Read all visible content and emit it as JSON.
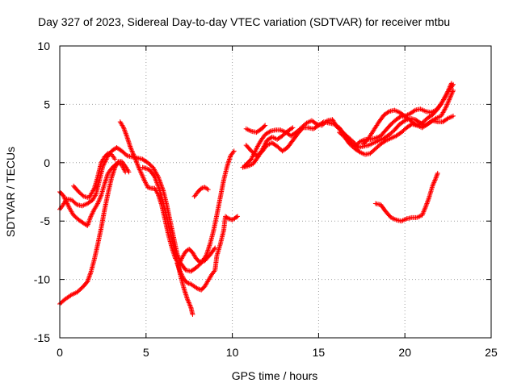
{
  "chart_data": {
    "type": "scatter",
    "title": "Day 327 of 2023, Sidereal Day-to-day VTEC variation (SDTVAR) for receiver mtbu",
    "xlabel": "GPS time / hours",
    "ylabel": "SDTVAR / TECUs",
    "xlim": [
      0,
      25
    ],
    "ylim": [
      -15,
      10
    ],
    "xticks": [
      "0",
      "5",
      "10",
      "15",
      "20",
      "25"
    ],
    "yticks": [
      "-15",
      "-10",
      "-5",
      "0",
      "5",
      "10"
    ],
    "grid": true,
    "marker": "+",
    "colors": {
      "series": "#ff0000",
      "grid": "#a0a0a0",
      "axis": "#000000"
    },
    "series": [
      {
        "points": [
          [
            0.0,
            -12.1
          ],
          [
            0.3,
            -11.7
          ],
          [
            0.7,
            -11.3
          ],
          [
            1.0,
            -11.1
          ],
          [
            1.3,
            -10.7
          ],
          [
            1.6,
            -10.2
          ],
          [
            1.8,
            -9.4
          ],
          [
            2.0,
            -8.3
          ],
          [
            2.2,
            -7.0
          ],
          [
            2.4,
            -5.6
          ],
          [
            2.6,
            -4.0
          ],
          [
            2.8,
            -2.6
          ],
          [
            3.0,
            -1.3
          ],
          [
            3.2,
            -0.4
          ],
          [
            3.4,
            0.1
          ],
          [
            3.6,
            0.1
          ],
          [
            3.8,
            -0.3
          ],
          [
            4.0,
            -0.8
          ]
        ]
      },
      {
        "points": [
          [
            0.0,
            -2.5
          ],
          [
            0.2,
            -2.8
          ],
          [
            0.4,
            -3.4
          ],
          [
            0.6,
            -4.0
          ],
          [
            0.8,
            -4.5
          ],
          [
            1.1,
            -4.9
          ],
          [
            1.4,
            -5.2
          ],
          [
            1.6,
            -5.4
          ],
          [
            1.8,
            -4.6
          ],
          [
            2.0,
            -4.0
          ],
          [
            2.2,
            -3.5
          ],
          [
            2.4,
            -2.8
          ],
          [
            2.6,
            -1.8
          ],
          [
            2.8,
            -0.9
          ],
          [
            3.0,
            -0.5
          ],
          [
            3.2,
            -0.2
          ],
          [
            3.4,
            0.0
          ],
          [
            3.6,
            -0.2
          ],
          [
            3.8,
            -0.8
          ]
        ]
      },
      {
        "points": [
          [
            0.0,
            -4.0
          ],
          [
            0.2,
            -3.6
          ],
          [
            0.4,
            -3.1
          ],
          [
            0.7,
            -3.2
          ],
          [
            1.0,
            -3.6
          ],
          [
            1.3,
            -3.7
          ],
          [
            1.6,
            -3.5
          ],
          [
            1.9,
            -3.2
          ],
          [
            2.1,
            -2.7
          ],
          [
            2.3,
            -1.5
          ],
          [
            2.5,
            -0.3
          ],
          [
            2.8,
            0.6
          ],
          [
            3.0,
            1.0
          ],
          [
            3.3,
            1.3
          ],
          [
            3.6,
            1.0
          ],
          [
            3.9,
            0.6
          ],
          [
            4.2,
            0.5
          ],
          [
            4.5,
            0.4
          ],
          [
            4.8,
            0.3
          ],
          [
            5.1,
            0.0
          ],
          [
            5.4,
            -0.4
          ],
          [
            5.7,
            -1.2
          ],
          [
            6.0,
            -2.4
          ],
          [
            6.2,
            -3.6
          ],
          [
            6.4,
            -5.0
          ],
          [
            6.6,
            -6.4
          ],
          [
            6.8,
            -7.8
          ],
          [
            7.0,
            -8.6
          ],
          [
            7.3,
            -9.2
          ],
          [
            7.6,
            -9.3
          ],
          [
            7.9,
            -9.0
          ],
          [
            8.2,
            -8.6
          ],
          [
            8.5,
            -7.9
          ],
          [
            8.7,
            -7.0
          ],
          [
            8.9,
            -5.9
          ],
          [
            9.1,
            -4.5
          ],
          [
            9.3,
            -3.0
          ],
          [
            9.5,
            -1.5
          ],
          [
            9.7,
            -0.3
          ],
          [
            9.9,
            0.6
          ],
          [
            10.1,
            1.0
          ]
        ]
      },
      {
        "points": [
          [
            0.8,
            -2.0
          ],
          [
            1.1,
            -2.5
          ],
          [
            1.4,
            -2.9
          ],
          [
            1.7,
            -3.0
          ],
          [
            2.0,
            -2.2
          ],
          [
            2.2,
            -1.2
          ],
          [
            2.4,
            0.0
          ],
          [
            2.6,
            0.5
          ],
          [
            2.8,
            0.8
          ],
          [
            3.0,
            0.7
          ],
          [
            3.2,
            0.3
          ]
        ]
      },
      {
        "points": [
          [
            3.5,
            3.5
          ],
          [
            3.7,
            3.0
          ],
          [
            3.9,
            2.2
          ],
          [
            4.1,
            1.3
          ],
          [
            4.3,
            0.6
          ],
          [
            4.6,
            -0.5
          ],
          [
            4.9,
            -1.5
          ],
          [
            5.1,
            -2.1
          ],
          [
            5.3,
            -2.2
          ],
          [
            5.5,
            -2.2
          ],
          [
            5.7,
            -2.7
          ],
          [
            5.9,
            -3.6
          ],
          [
            6.1,
            -4.9
          ],
          [
            6.3,
            -6.2
          ],
          [
            6.5,
            -7.3
          ],
          [
            6.7,
            -8.2
          ],
          [
            6.9,
            -8.7
          ],
          [
            7.1,
            -8.1
          ],
          [
            7.3,
            -7.6
          ],
          [
            7.5,
            -7.4
          ],
          [
            7.7,
            -7.7
          ],
          [
            7.9,
            -8.2
          ],
          [
            8.1,
            -8.5
          ],
          [
            8.4,
            -8.4
          ],
          [
            8.7,
            -7.9
          ],
          [
            9.0,
            -7.3
          ]
        ]
      },
      {
        "points": [
          [
            4.8,
            -0.4
          ],
          [
            5.2,
            -0.6
          ],
          [
            5.5,
            -1.2
          ],
          [
            5.8,
            -2.4
          ],
          [
            6.0,
            -3.5
          ],
          [
            6.2,
            -4.7
          ],
          [
            6.4,
            -6.0
          ],
          [
            6.6,
            -7.2
          ],
          [
            6.8,
            -8.4
          ],
          [
            7.0,
            -9.7
          ],
          [
            7.2,
            -10.8
          ],
          [
            7.4,
            -11.7
          ],
          [
            7.6,
            -12.4
          ],
          [
            7.7,
            -13.0
          ]
        ]
      },
      {
        "points": [
          [
            6.8,
            -8.6
          ],
          [
            7.0,
            -9.4
          ],
          [
            7.2,
            -10.0
          ],
          [
            7.4,
            -10.3
          ],
          [
            7.6,
            -10.4
          ],
          [
            7.8,
            -10.6
          ],
          [
            8.0,
            -10.8
          ],
          [
            8.2,
            -10.9
          ],
          [
            8.4,
            -10.6
          ],
          [
            8.6,
            -10.1
          ],
          [
            8.8,
            -9.6
          ],
          [
            9.0,
            -9.2
          ],
          [
            9.1,
            -8.0
          ],
          [
            9.3,
            -7.0
          ],
          [
            9.5,
            -5.8
          ],
          [
            9.6,
            -4.6
          ],
          [
            9.8,
            -4.8
          ],
          [
            10.0,
            -4.9
          ],
          [
            10.2,
            -4.7
          ],
          [
            10.3,
            -4.6
          ]
        ]
      },
      {
        "points": [
          [
            7.8,
            -2.9
          ],
          [
            8.0,
            -2.5
          ],
          [
            8.2,
            -2.2
          ],
          [
            8.4,
            -2.1
          ],
          [
            8.6,
            -2.3
          ]
        ]
      },
      {
        "points": [
          [
            10.7,
            -0.3
          ],
          [
            10.9,
            0.0
          ],
          [
            11.1,
            0.3
          ],
          [
            11.3,
            0.9
          ],
          [
            11.5,
            1.5
          ],
          [
            11.7,
            2.0
          ],
          [
            11.9,
            2.4
          ],
          [
            12.2,
            2.7
          ],
          [
            12.5,
            2.8
          ],
          [
            12.8,
            2.8
          ],
          [
            13.1,
            2.6
          ],
          [
            13.4,
            2.3
          ],
          [
            13.7,
            2.6
          ],
          [
            14.0,
            3.0
          ],
          [
            14.3,
            3.4
          ],
          [
            14.6,
            3.6
          ],
          [
            14.9,
            3.3
          ],
          [
            15.2,
            3.2
          ],
          [
            15.5,
            3.6
          ],
          [
            15.8,
            3.7
          ],
          [
            16.1,
            3.0
          ],
          [
            16.4,
            2.6
          ],
          [
            16.7,
            2.2
          ],
          [
            17.0,
            1.8
          ],
          [
            17.3,
            1.3
          ],
          [
            17.6,
            1.4
          ],
          [
            17.9,
            1.5
          ],
          [
            18.2,
            1.7
          ],
          [
            18.5,
            1.9
          ],
          [
            18.8,
            2.1
          ],
          [
            19.1,
            2.4
          ],
          [
            19.4,
            2.8
          ],
          [
            19.7,
            3.3
          ],
          [
            20.0,
            3.6
          ],
          [
            20.3,
            3.8
          ],
          [
            20.6,
            3.7
          ],
          [
            20.9,
            3.4
          ],
          [
            21.2,
            3.2
          ],
          [
            21.5,
            3.5
          ],
          [
            21.8,
            3.8
          ],
          [
            22.1,
            4.0
          ],
          [
            22.4,
            4.8
          ],
          [
            22.6,
            5.5
          ],
          [
            22.8,
            6.2
          ]
        ]
      },
      {
        "points": [
          [
            10.8,
            1.5
          ],
          [
            11.1,
            1.0
          ],
          [
            11.4,
            0.6
          ],
          [
            11.7,
            0.9
          ],
          [
            12.0,
            1.5
          ],
          [
            12.3,
            1.7
          ],
          [
            12.6,
            1.4
          ],
          [
            12.9,
            1.0
          ],
          [
            13.2,
            1.3
          ],
          [
            13.5,
            1.9
          ],
          [
            13.8,
            2.5
          ],
          [
            14.1,
            3.0
          ],
          [
            14.4,
            3.0
          ],
          [
            14.7,
            2.9
          ],
          [
            15.0,
            3.2
          ],
          [
            15.3,
            3.5
          ],
          [
            15.6,
            3.4
          ],
          [
            15.9,
            3.3
          ],
          [
            16.2,
            3.0
          ],
          [
            16.5,
            2.4
          ],
          [
            16.8,
            1.8
          ],
          [
            17.1,
            1.4
          ],
          [
            17.4,
            1.8
          ],
          [
            17.7,
            2.0
          ],
          [
            18.0,
            2.0
          ],
          [
            18.3,
            2.1
          ],
          [
            18.6,
            2.3
          ],
          [
            18.9,
            2.8
          ],
          [
            19.2,
            3.3
          ],
          [
            19.5,
            3.7
          ],
          [
            19.8,
            4.0
          ],
          [
            20.1,
            3.9
          ],
          [
            20.4,
            3.5
          ],
          [
            20.7,
            3.2
          ],
          [
            21.0,
            3.4
          ],
          [
            21.3,
            3.8
          ],
          [
            21.6,
            4.1
          ],
          [
            21.9,
            4.6
          ],
          [
            22.2,
            5.3
          ],
          [
            22.5,
            6.1
          ],
          [
            22.8,
            6.7
          ]
        ]
      },
      {
        "points": [
          [
            10.8,
            2.9
          ],
          [
            11.1,
            2.7
          ],
          [
            11.4,
            2.6
          ],
          [
            11.7,
            2.9
          ],
          [
            11.9,
            3.2
          ]
        ]
      },
      {
        "points": [
          [
            10.6,
            -0.4
          ],
          [
            10.9,
            -0.3
          ],
          [
            11.2,
            -0.1
          ],
          [
            11.5,
            0.5
          ],
          [
            11.8,
            1.3
          ],
          [
            12.0,
            1.9
          ],
          [
            12.3,
            2.2
          ],
          [
            12.6,
            2.0
          ],
          [
            12.9,
            2.3
          ],
          [
            13.2,
            2.7
          ],
          [
            13.5,
            3.0
          ]
        ]
      },
      {
        "points": [
          [
            16.2,
            2.6
          ],
          [
            16.5,
            2.2
          ],
          [
            16.8,
            1.6
          ],
          [
            17.1,
            1.2
          ],
          [
            17.4,
            0.9
          ],
          [
            17.7,
            0.7
          ],
          [
            18.0,
            0.8
          ],
          [
            18.3,
            1.2
          ],
          [
            18.6,
            1.6
          ],
          [
            18.9,
            1.9
          ],
          [
            19.2,
            2.1
          ],
          [
            19.5,
            2.3
          ],
          [
            19.8,
            2.6
          ],
          [
            20.1,
            3.0
          ],
          [
            20.4,
            3.3
          ],
          [
            20.7,
            3.2
          ],
          [
            21.0,
            3.0
          ],
          [
            21.3,
            3.3
          ],
          [
            21.6,
            3.6
          ],
          [
            21.9,
            3.5
          ],
          [
            22.2,
            3.5
          ],
          [
            22.5,
            3.8
          ],
          [
            22.8,
            4.0
          ]
        ]
      },
      {
        "points": [
          [
            17.6,
            1.6
          ],
          [
            17.9,
            2.1
          ],
          [
            18.2,
            2.8
          ],
          [
            18.5,
            3.5
          ],
          [
            18.8,
            4.1
          ],
          [
            19.1,
            4.4
          ],
          [
            19.4,
            4.5
          ],
          [
            19.7,
            4.3
          ],
          [
            20.0,
            4.0
          ],
          [
            20.3,
            4.2
          ],
          [
            20.6,
            4.5
          ],
          [
            20.9,
            4.6
          ],
          [
            21.2,
            4.4
          ],
          [
            21.5,
            4.3
          ],
          [
            21.8,
            4.5
          ],
          [
            22.1,
            5.0
          ],
          [
            22.4,
            5.8
          ],
          [
            22.7,
            6.8
          ]
        ]
      },
      {
        "points": [
          [
            18.3,
            -3.5
          ],
          [
            18.6,
            -3.6
          ],
          [
            18.9,
            -4.2
          ],
          [
            19.2,
            -4.7
          ],
          [
            19.5,
            -4.9
          ],
          [
            19.8,
            -5.0
          ],
          [
            20.1,
            -4.8
          ],
          [
            20.4,
            -4.7
          ],
          [
            20.7,
            -4.7
          ],
          [
            21.0,
            -4.5
          ],
          [
            21.2,
            -3.8
          ],
          [
            21.4,
            -3.0
          ],
          [
            21.6,
            -2.0
          ],
          [
            21.8,
            -1.3
          ],
          [
            21.9,
            -0.9
          ]
        ]
      }
    ]
  }
}
